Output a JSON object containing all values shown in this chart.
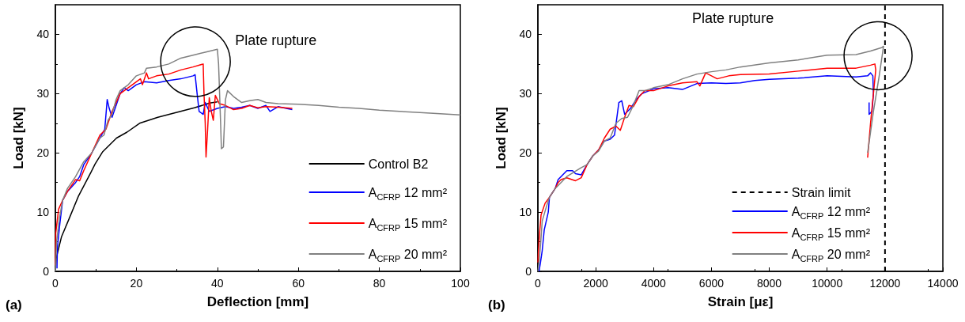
{
  "chart_data": [
    {
      "type": "line",
      "title": "(a)",
      "xlabel": "Deflection [mm]",
      "ylabel": "Load [kN]",
      "xlim": [
        0,
        100
      ],
      "xticks": [
        0,
        20,
        40,
        60,
        80,
        100
      ],
      "ylim": [
        0,
        45
      ],
      "yticks": [
        0,
        10,
        20,
        30,
        40
      ],
      "legend": "bottom right",
      "annotations": [
        "Plate rupture"
      ],
      "series": [
        {
          "name": "Control B2",
          "color": "#000000",
          "x": [
            0,
            0.2,
            1.5,
            3.4,
            5.7,
            8.7,
            9.8,
            11.7,
            15.1,
            17.7,
            20.8,
            25.3,
            29.8,
            34.3,
            38.1,
            40
          ],
          "values": [
            0,
            2.2,
            5.8,
            8.9,
            12.7,
            16.6,
            18.1,
            20.2,
            22.5,
            23.5,
            25,
            26,
            26.8,
            27.6,
            28.4,
            28.6
          ]
        },
        {
          "name": "A$_{CFRP}$ 12 mm²",
          "color": "#0000ff",
          "x": [
            0.4,
            0.5,
            1.1,
            1.8,
            3,
            5,
            6,
            7,
            9,
            11,
            12.2,
            12.8,
            13.3,
            14,
            15,
            16,
            17,
            18,
            20,
            22,
            25,
            28,
            31,
            34,
            34.5,
            35,
            35.5,
            36.5,
            37,
            38,
            40,
            42,
            44,
            46,
            48,
            50,
            52,
            53,
            55,
            57,
            58.5
          ],
          "values": [
            0.5,
            4,
            8,
            12,
            13.5,
            15,
            16,
            18,
            20,
            22.5,
            24,
            29,
            27.5,
            26,
            28,
            30,
            31,
            30.5,
            31.5,
            32,
            31.8,
            32.2,
            32.5,
            33,
            33.2,
            30,
            27,
            26.5,
            28.5,
            27,
            27.5,
            27.8,
            27.5,
            27.7,
            28,
            27.5,
            28,
            27,
            27.8,
            27.5,
            27.3
          ]
        },
        {
          "name": "A$_{CFRP}$ 15 mm²",
          "color": "#ff0000",
          "x": [
            0,
            0.1,
            0.8,
            1.8,
            3,
            5,
            6,
            7,
            9,
            11,
            12.5,
            13,
            14,
            15,
            16,
            18,
            20,
            21,
            21.5,
            22.5,
            23,
            25,
            28,
            31,
            34,
            36.5,
            36.7,
            37,
            37.2,
            37.6,
            38,
            38.5,
            39,
            39.5,
            40.5,
            42,
            44,
            46,
            48,
            50,
            52,
            55,
            58.5
          ],
          "values": [
            1,
            6.5,
            10.5,
            12,
            13.5,
            15.5,
            15.3,
            17,
            20,
            23,
            24,
            25,
            27,
            28.5,
            30,
            31,
            32,
            32.5,
            31.5,
            33.5,
            32.5,
            33,
            33.3,
            34,
            34.5,
            35,
            30,
            25,
            19.3,
            24,
            29.3,
            27,
            25.5,
            29.7,
            28.3,
            28,
            27.3,
            27.5,
            28,
            27.6,
            27.8,
            27.7,
            27.5
          ]
        },
        {
          "name": "A$_{CFRP}$ 20 mm²",
          "color": "#808080",
          "x": [
            0,
            0.3,
            1,
            1.8,
            3,
            5,
            7,
            9,
            11,
            12,
            13,
            14,
            15,
            16,
            18,
            20,
            22,
            22.5,
            25,
            28,
            31,
            34,
            37,
            40,
            40.3,
            40.8,
            41,
            41.5,
            42,
            42.5,
            44,
            46,
            48,
            50,
            52,
            55,
            60,
            65,
            70,
            75,
            80,
            85,
            90,
            95,
            100
          ],
          "values": [
            0,
            5,
            9,
            12,
            14,
            16,
            18.5,
            20,
            22.5,
            23,
            25.5,
            26.5,
            29,
            30.5,
            31.5,
            33,
            33.5,
            34.3,
            34.5,
            35,
            36,
            36.5,
            37,
            37.5,
            35,
            25,
            20.7,
            21,
            29,
            30.5,
            29.5,
            28.5,
            28.8,
            29,
            28.5,
            28.3,
            28.2,
            28,
            27.7,
            27.5,
            27.2,
            27,
            26.8,
            26.6,
            26.4
          ]
        }
      ]
    },
    {
      "type": "line",
      "title": "(b)",
      "xlabel": "Strain [με]",
      "ylabel": "Load [kN]",
      "xlim": [
        0,
        14000
      ],
      "xticks": [
        0,
        2000,
        4000,
        6000,
        8000,
        10000,
        12000,
        14000
      ],
      "ylim": [
        0,
        45
      ],
      "yticks": [
        0,
        10,
        20,
        30,
        40
      ],
      "legend": "bottom right",
      "annotations": [
        "Plate rupture"
      ],
      "ref_lines": [
        {
          "axis": "x",
          "value": 12000,
          "label": "Strain limit",
          "color": "#000000",
          "line_style": "dashed"
        }
      ],
      "series": [
        {
          "name": "A$_{CFRP}$ 12 mm²",
          "color": "#0000ff",
          "x": [
            40,
            90,
            150,
            220,
            360,
            400,
            600,
            700,
            900,
            1000,
            1200,
            1300,
            1500,
            1700,
            1900,
            2100,
            2300,
            2500,
            2650,
            2800,
            2900,
            3000,
            3200,
            3400,
            3600,
            4000,
            4500,
            5000,
            5500,
            6000,
            6500,
            7000,
            7500,
            8000,
            9000,
            10000,
            11000,
            11400,
            11500,
            11580,
            11600,
            11550,
            11450,
            11450
          ],
          "values": [
            0,
            1.5,
            3.5,
            7,
            10,
            12.5,
            14,
            15.5,
            16.5,
            17,
            17,
            16.5,
            16.3,
            18,
            19.5,
            20.5,
            22,
            22.3,
            23,
            28.5,
            28.8,
            26.5,
            27.5,
            29,
            30,
            30.8,
            31,
            30.7,
            31.7,
            31.8,
            31.7,
            31.8,
            32.2,
            32.4,
            32.6,
            33,
            32.8,
            33,
            33.5,
            33,
            30,
            27,
            26.5,
            28.5
          ]
        },
        {
          "name": "A$_{CFRP}$ 15 mm²",
          "color": "#ff0000",
          "x": [
            0,
            20,
            60,
            110,
            250,
            400,
            600,
            700,
            800,
            1000,
            1300,
            1500,
            1700,
            1900,
            2100,
            2300,
            2500,
            2700,
            2850,
            3000,
            3150,
            3300,
            3500,
            3700,
            4000,
            4500,
            5000,
            5500,
            5600,
            5800,
            6000,
            6200,
            6600,
            7000,
            8000,
            9000,
            10000,
            11000,
            11500,
            11650,
            11680,
            11600,
            11500,
            11400
          ],
          "values": [
            1.5,
            3.5,
            6.5,
            9.5,
            11.5,
            12.5,
            14,
            15,
            15.5,
            15.8,
            15.3,
            15.8,
            18,
            19.5,
            20.5,
            22.5,
            24,
            24.5,
            23.8,
            26,
            28,
            27.8,
            29.5,
            30.5,
            30.5,
            31.3,
            31.8,
            32,
            31.3,
            33.5,
            33,
            32.5,
            33,
            33.2,
            33.3,
            33.8,
            34.3,
            34.3,
            34.8,
            35,
            34,
            30,
            25,
            19.2
          ]
        },
        {
          "name": "A$_{CFRP}$ 20 mm²",
          "color": "#808080",
          "x": [
            0,
            50,
            100,
            150,
            300,
            400,
            600,
            800,
            1000,
            1500,
            1700,
            1900,
            2100,
            2300,
            2500,
            2700,
            2900,
            3100,
            3300,
            3500,
            3700,
            4000,
            4500,
            5000,
            5500,
            6000,
            6500,
            7000,
            8000,
            9000,
            10000,
            11000,
            11500,
            11900,
            11950,
            11800,
            11600,
            11400
          ],
          "values": [
            0,
            2,
            5,
            8.5,
            11,
            12.5,
            14,
            15,
            16,
            17.5,
            18,
            19.5,
            20.3,
            22,
            22.5,
            25,
            25.8,
            26,
            28,
            30.5,
            30.5,
            31,
            31.5,
            32.5,
            33.3,
            33.7,
            34,
            34.5,
            35.2,
            35.7,
            36.5,
            36.6,
            37.2,
            37.8,
            38,
            33,
            27,
            20
          ]
        }
      ]
    }
  ]
}
